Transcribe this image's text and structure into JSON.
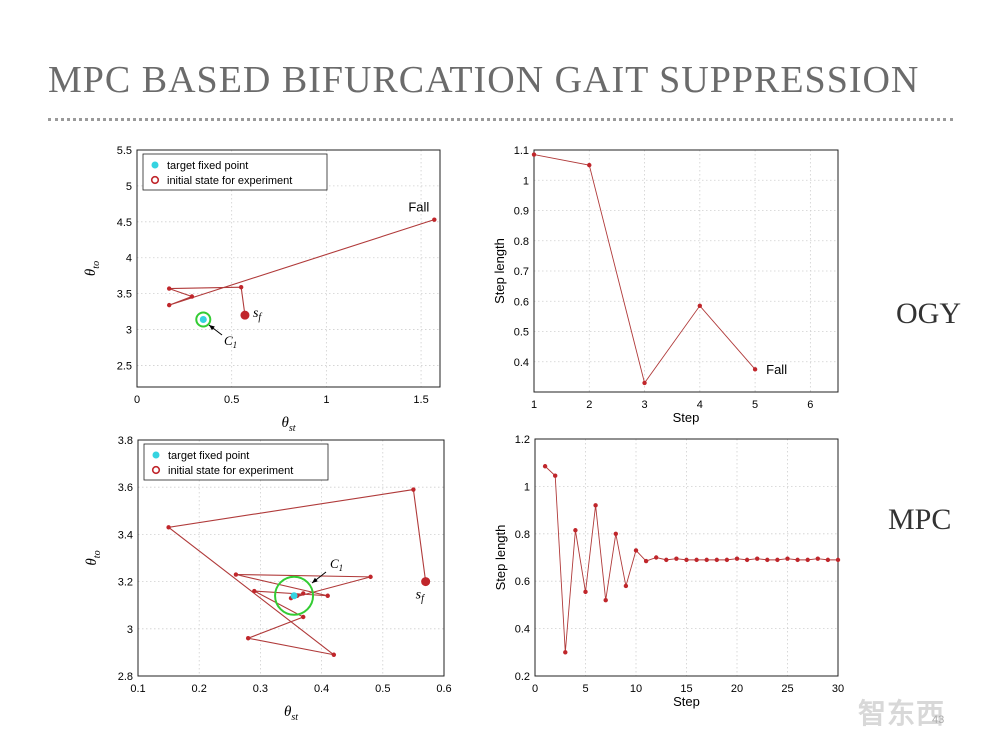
{
  "slide": {
    "title": "MPC BASED BIFURCATION GAIT SUPPRESSION",
    "label_ogy": "OGY",
    "label_mpc": "MPC",
    "watermark": "智东西",
    "page_number": "43"
  },
  "colors": {
    "line": "#b03a3a",
    "marker": "#c0262b",
    "cyan": "#35d3e0",
    "green": "#33cc33",
    "grid": "#cfcfcf"
  },
  "chart_data": [
    {
      "id": "ogy_phase",
      "type": "line",
      "xlabel": "θst",
      "ylabel": "θto",
      "xlim": [
        0,
        1.6
      ],
      "ylim": [
        2.2,
        5.5
      ],
      "xticks": [
        0,
        0.5,
        1,
        1.5
      ],
      "xtick_labels": [
        "0",
        "0.5",
        "1",
        "1.5"
      ],
      "yticks": [
        2.5,
        3,
        3.5,
        4,
        4.5,
        5,
        5.5
      ],
      "ytick_labels": [
        "2.5",
        "3",
        "3.5",
        "4",
        "4.5",
        "5",
        "5.5"
      ],
      "legend": [
        "target fixed point",
        "initial state for experiment"
      ],
      "legend_position": "top-left",
      "series": [
        {
          "name": "trajectory",
          "x": [
            0.57,
            0.55,
            0.17,
            0.29,
            0.17,
            1.57
          ],
          "y": [
            3.2,
            3.59,
            3.57,
            3.46,
            3.34,
            4.53
          ]
        }
      ],
      "target": {
        "x": 0.35,
        "y": 3.14
      },
      "initial": {
        "x": 0.57,
        "y": 3.2
      },
      "annotations": {
        "fall": "Fall",
        "c1": "C1",
        "sf": "sf"
      }
    },
    {
      "id": "ogy_step",
      "type": "line",
      "xlabel": "Step",
      "ylabel": "Step length",
      "xlim": [
        1,
        6.5
      ],
      "ylim": [
        0.3,
        1.1
      ],
      "xticks": [
        1,
        2,
        3,
        4,
        5,
        6
      ],
      "xtick_labels": [
        "1",
        "2",
        "3",
        "4",
        "5",
        "6"
      ],
      "yticks": [
        0.4,
        0.5,
        0.6,
        0.7,
        0.8,
        0.9,
        1,
        1.1
      ],
      "ytick_labels": [
        "0.4",
        "0.5",
        "0.6",
        "0.7",
        "0.8",
        "0.9",
        "1",
        "1.1"
      ],
      "series": [
        {
          "name": "step length",
          "x": [
            1,
            2,
            3,
            4,
            5
          ],
          "y": [
            1.085,
            1.05,
            0.33,
            0.585,
            0.375
          ]
        }
      ],
      "annotations": {
        "fall": "Fall"
      }
    },
    {
      "id": "mpc_phase",
      "type": "line",
      "xlabel": "θst",
      "ylabel": "θto",
      "xlim": [
        0.1,
        0.6
      ],
      "ylim": [
        2.8,
        3.8
      ],
      "xticks": [
        0.1,
        0.2,
        0.3,
        0.4,
        0.5,
        0.6
      ],
      "xtick_labels": [
        "0.1",
        "0.2",
        "0.3",
        "0.4",
        "0.5",
        "0.6"
      ],
      "yticks": [
        2.8,
        3,
        3.2,
        3.4,
        3.6,
        3.8
      ],
      "ytick_labels": [
        "2.8",
        "3",
        "3.2",
        "3.4",
        "3.6",
        "3.8"
      ],
      "legend": [
        "target fixed point",
        "initial state for experiment"
      ],
      "legend_position": "top-left",
      "series": [
        {
          "name": "trajectory",
          "x": [
            0.57,
            0.55,
            0.15,
            0.42,
            0.28,
            0.37,
            0.29,
            0.41,
            0.26,
            0.48,
            0.35,
            0.37,
            0.36
          ],
          "y": [
            3.2,
            3.59,
            3.43,
            2.89,
            2.96,
            3.05,
            3.16,
            3.14,
            3.23,
            3.22,
            3.13,
            3.15,
            3.14
          ]
        }
      ],
      "target": {
        "x": 0.355,
        "y": 3.14
      },
      "initial": {
        "x": 0.57,
        "y": 3.2
      },
      "annotations": {
        "c1": "C1",
        "sf": "sf"
      }
    },
    {
      "id": "mpc_step",
      "type": "line",
      "xlabel": "Step",
      "ylabel": "Step length",
      "xlim": [
        0,
        30
      ],
      "ylim": [
        0.2,
        1.2
      ],
      "xticks": [
        0,
        5,
        10,
        15,
        20,
        25,
        30
      ],
      "xtick_labels": [
        "0",
        "5",
        "10",
        "15",
        "20",
        "25",
        "30"
      ],
      "yticks": [
        0.2,
        0.4,
        0.6,
        0.8,
        1,
        1.2
      ],
      "ytick_labels": [
        "0.2",
        "0.4",
        "0.6",
        "0.8",
        "1",
        "1.2"
      ],
      "series": [
        {
          "name": "step length",
          "x": [
            1,
            2,
            3,
            4,
            5,
            6,
            7,
            8,
            9,
            10,
            11,
            12,
            13,
            14,
            15,
            16,
            17,
            18,
            19,
            20,
            21,
            22,
            23,
            24,
            25,
            26,
            27,
            28,
            29,
            30
          ],
          "y": [
            1.085,
            1.045,
            0.3,
            0.815,
            0.555,
            0.92,
            0.52,
            0.8,
            0.58,
            0.73,
            0.685,
            0.7,
            0.69,
            0.695,
            0.69,
            0.69,
            0.69,
            0.69,
            0.69,
            0.695,
            0.69,
            0.695,
            0.69,
            0.69,
            0.695,
            0.69,
            0.69,
            0.695,
            0.69,
            0.69
          ]
        }
      ]
    }
  ]
}
